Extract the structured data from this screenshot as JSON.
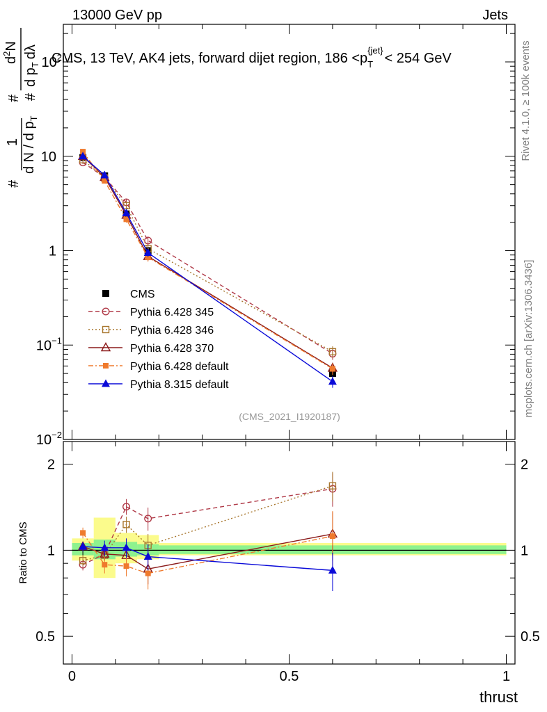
{
  "header": {
    "left": "13000 GeV pp",
    "right": "Jets"
  },
  "side_labels": {
    "rivet": "Rivet 4.1.0, ≥ 100k events",
    "mcplots": "mcplots.cern.ch [arXiv:1306.3436]"
  },
  "chart_data": [
    {
      "type": "line",
      "title": "CMS, 13 TeV, AK4 jets, forward dijet region, 186 <p",
      "title_sub": "T",
      "title_sup": "{jet}",
      "title_tail": "< 254 GeV",
      "ylabel": "1/dN/dp_T # d^2N/dp_T dλ",
      "ylabel_parts": {
        "frac1_num": "1",
        "frac1_den": "d N / d p",
        "frac2_num": "d",
        "frac2_num_sup": "2",
        "frac2_num_tail": "N",
        "frac2_den": "d p",
        "frac2_den_tail": "dλ",
        "sub": "T",
        "hash": "#"
      },
      "yscale": "log",
      "ylim": [
        0.01,
        250
      ],
      "yticks": [
        {
          "v": 0.01,
          "mant": "10",
          "exp": "−2"
        },
        {
          "v": 0.1,
          "mant": "10",
          "exp": "−1"
        },
        {
          "v": 1,
          "mant": "1",
          "exp": ""
        },
        {
          "v": 10,
          "mant": "10",
          "exp": ""
        },
        {
          "v": 100,
          "mant": "10",
          "exp": "2"
        }
      ],
      "xlim": [
        -0.02,
        1.02
      ],
      "watermark": "(CMS_2021_I1920187)",
      "legend_position": "middle-left",
      "x": [
        0.025,
        0.075,
        0.125,
        0.175,
        0.6
      ],
      "xbins": [
        [
          0.0,
          0.05
        ],
        [
          0.05,
          0.1
        ],
        [
          0.1,
          0.15
        ],
        [
          0.15,
          0.2
        ],
        [
          0.2,
          1.0
        ]
      ],
      "series": [
        {
          "name": "CMS",
          "values": [
            9.7,
            6.2,
            2.45,
            1.0,
            0.05
          ],
          "color": "#000000",
          "marker": "square-filled",
          "dash": ""
        },
        {
          "name": "Pythia 6.428 345",
          "values": [
            8.6,
            6.0,
            3.25,
            1.28,
            0.081
          ],
          "color": "#b03a48",
          "marker": "circle-open",
          "dash": "6,4"
        },
        {
          "name": "Pythia 6.428 346",
          "values": [
            9.2,
            5.9,
            3.0,
            1.05,
            0.085
          ],
          "color": "#a8772f",
          "marker": "square-open",
          "dash": "2,3"
        },
        {
          "name": "Pythia 6.428 370",
          "values": [
            10.0,
            6.0,
            2.38,
            0.87,
            0.057
          ],
          "color": "#8b1a1a",
          "marker": "triangle-open",
          "dash": ""
        },
        {
          "name": "Pythia 6.428 default",
          "values": [
            11.2,
            5.5,
            2.15,
            0.85,
            0.056
          ],
          "color": "#ef7a2d",
          "marker": "square-filled-small",
          "dash": "7,3,2,3"
        },
        {
          "name": "Pythia 8.315 default",
          "values": [
            10.0,
            6.3,
            2.5,
            0.95,
            0.041
          ],
          "color": "#0a0ad8",
          "marker": "triangle-filled",
          "dash": ""
        }
      ]
    },
    {
      "type": "line",
      "title": "",
      "ylabel": "Ratio to CMS",
      "yscale": "log",
      "ylim": [
        0.4,
        2.4
      ],
      "yticks": [
        {
          "v": 0.5,
          "label": "0.5"
        },
        {
          "v": 1,
          "label": "1"
        },
        {
          "v": 2,
          "label": "2"
        }
      ],
      "xlabel": "thrust",
      "xlim": [
        -0.02,
        1.02
      ],
      "xticks": [
        {
          "v": 0,
          "label": "0"
        },
        {
          "v": 0.5,
          "label": "0.5"
        },
        {
          "v": 1,
          "label": "1"
        }
      ],
      "x": [
        0.025,
        0.075,
        0.125,
        0.175,
        0.6
      ],
      "uncertainty_bands": {
        "yellow": [
          [
            0.0,
            0.05,
            0.92,
            1.1
          ],
          [
            0.05,
            0.1,
            0.8,
            1.3
          ],
          [
            0.1,
            0.15,
            0.9,
            1.15
          ],
          [
            0.15,
            0.2,
            0.93,
            1.13
          ],
          [
            0.2,
            1.0,
            0.96,
            1.06
          ]
        ],
        "green": [
          [
            0.0,
            0.05,
            0.96,
            1.06
          ],
          [
            0.05,
            0.1,
            0.93,
            1.09
          ],
          [
            0.1,
            0.15,
            0.95,
            1.07
          ],
          [
            0.15,
            0.2,
            0.96,
            1.05
          ],
          [
            0.2,
            1.0,
            0.97,
            1.04
          ]
        ]
      },
      "series": [
        {
          "name": "Pythia 6.428 345",
          "values": [
            0.89,
            0.97,
            1.42,
            1.29,
            1.64
          ],
          "errors": [
            0.04,
            0.04,
            0.09,
            0.12,
            0.22
          ],
          "color": "#b03a48",
          "marker": "circle-open",
          "dash": "6,4"
        },
        {
          "name": "Pythia 6.428 346",
          "values": [
            0.92,
            0.96,
            1.23,
            1.04,
            1.68
          ],
          "errors": [
            0.04,
            0.04,
            0.08,
            0.1,
            0.2
          ],
          "color": "#a8772f",
          "marker": "square-open",
          "dash": "2,3"
        },
        {
          "name": "Pythia 6.428 370",
          "values": [
            1.03,
            0.97,
            0.96,
            0.86,
            1.14
          ],
          "errors": [
            0.04,
            0.05,
            0.07,
            0.1,
            0.22
          ],
          "color": "#8b1a1a",
          "marker": "triangle-open",
          "dash": ""
        },
        {
          "name": "Pythia 6.428 default",
          "values": [
            1.15,
            0.89,
            0.88,
            0.83,
            1.12
          ],
          "errors": [
            0.05,
            0.06,
            0.07,
            0.1,
            0.25
          ],
          "color": "#ef7a2d",
          "marker": "square-filled-small",
          "dash": "7,3,2,3"
        },
        {
          "name": "Pythia 8.315 default",
          "values": [
            1.03,
            1.02,
            1.02,
            0.95,
            0.85
          ],
          "errors": [
            0.04,
            0.06,
            0.08,
            0.1,
            0.13
          ],
          "color": "#0a0ad8",
          "marker": "triangle-filled",
          "dash": ""
        }
      ]
    }
  ]
}
